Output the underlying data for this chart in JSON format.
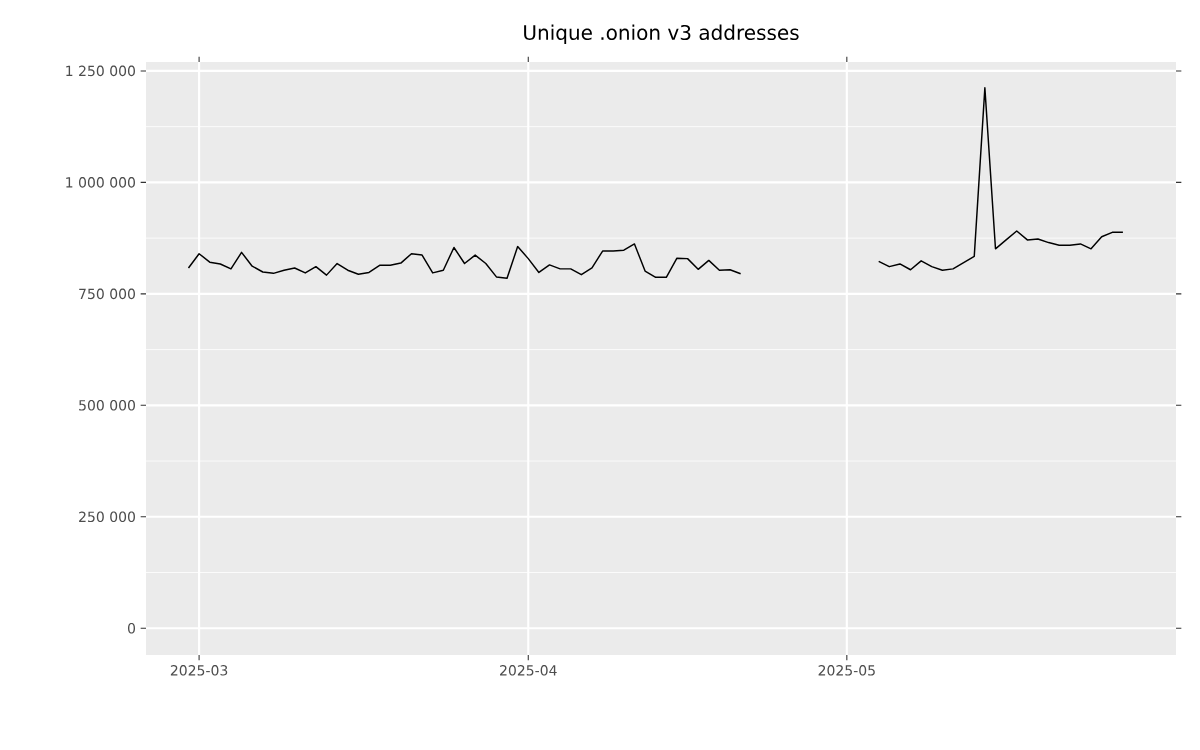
{
  "chart_data": {
    "type": "line",
    "title": "Unique .onion v3 addresses",
    "x": [
      "2025-02-28",
      "2025-03-01",
      "2025-03-02",
      "2025-03-03",
      "2025-03-04",
      "2025-03-05",
      "2025-03-06",
      "2025-03-07",
      "2025-03-08",
      "2025-03-09",
      "2025-03-10",
      "2025-03-11",
      "2025-03-12",
      "2025-03-13",
      "2025-03-14",
      "2025-03-15",
      "2025-03-16",
      "2025-03-17",
      "2025-03-18",
      "2025-03-19",
      "2025-03-20",
      "2025-03-21",
      "2025-03-22",
      "2025-03-23",
      "2025-03-24",
      "2025-03-25",
      "2025-03-26",
      "2025-03-27",
      "2025-03-28",
      "2025-03-29",
      "2025-03-30",
      "2025-03-31",
      "2025-04-01",
      "2025-04-02",
      "2025-04-03",
      "2025-04-04",
      "2025-04-05",
      "2025-04-06",
      "2025-04-07",
      "2025-04-08",
      "2025-04-09",
      "2025-04-10",
      "2025-04-11",
      "2025-04-12",
      "2025-04-13",
      "2025-04-14",
      "2025-04-15",
      "2025-04-16",
      "2025-04-17",
      "2025-04-18",
      "2025-04-19",
      "2025-04-20",
      "2025-04-21",
      "2025-04-22",
      "2025-05-04",
      "2025-05-05",
      "2025-05-06",
      "2025-05-07",
      "2025-05-08",
      "2025-05-09",
      "2025-05-10",
      "2025-05-11",
      "2025-05-12",
      "2025-05-13",
      "2025-05-14",
      "2025-05-15",
      "2025-05-16",
      "2025-05-17",
      "2025-05-18",
      "2025-05-19",
      "2025-05-20",
      "2025-05-21",
      "2025-05-22",
      "2025-05-23",
      "2025-05-24",
      "2025-05-25",
      "2025-05-26",
      "2025-05-27"
    ],
    "values": [
      808000,
      840000,
      821000,
      817000,
      806000,
      843000,
      812000,
      799000,
      796000,
      803000,
      808000,
      797000,
      811000,
      792000,
      818000,
      803000,
      794000,
      798000,
      814000,
      814000,
      819000,
      840000,
      837000,
      797000,
      803000,
      854000,
      818000,
      837000,
      818000,
      788000,
      785000,
      856000,
      829000,
      798000,
      815000,
      806000,
      806000,
      793000,
      808000,
      846000,
      846000,
      848000,
      862000,
      801000,
      787000,
      787000,
      830000,
      829000,
      805000,
      825000,
      803000,
      804000,
      795000,
      null,
      823000,
      811000,
      817000,
      804000,
      824000,
      811000,
      803000,
      806000,
      820000,
      834000,
      1212000,
      851000,
      871000,
      891000,
      871000,
      873000,
      865000,
      859000,
      859000,
      862000,
      851000,
      878000,
      888000,
      888000
    ],
    "color": "#000000",
    "xlim": [
      "2025-02-24",
      "2025-06-01"
    ],
    "ylim": [
      -60000,
      1270000
    ],
    "xticks": [
      {
        "value": "2025-03-01",
        "label": "2025-03"
      },
      {
        "value": "2025-04-01",
        "label": "2025-04"
      },
      {
        "value": "2025-05-01",
        "label": "2025-05"
      }
    ],
    "yticks": [
      {
        "value": 0,
        "label": "0"
      },
      {
        "value": 250000,
        "label": "250 000"
      },
      {
        "value": 500000,
        "label": "500 000"
      },
      {
        "value": 750000,
        "label": "750 000"
      },
      {
        "value": 1000000,
        "label": "1 000 000"
      },
      {
        "value": 1250000,
        "label": "1 250 000"
      }
    ],
    "grid": true
  }
}
